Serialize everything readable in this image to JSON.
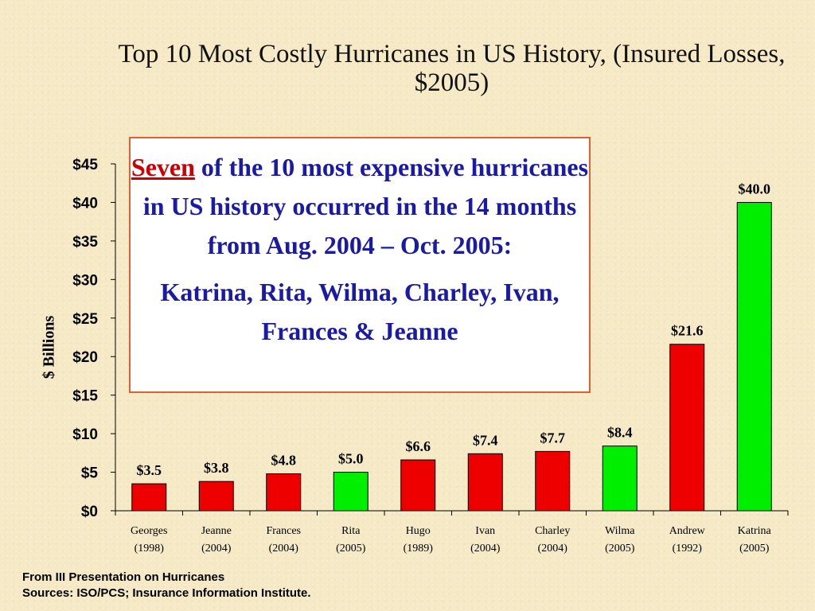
{
  "title": "Top 10 Most Costly Hurricanes in US History, (Insured Losses, $2005)",
  "callout": {
    "emph": "Seven",
    "line1_rest": " of the 10 most expensive hurricanes in US history occurred in the 14 months from Aug. 2004 – Oct. 2005:",
    "line2": "Katrina, Rita, Wilma, Charley, Ivan, Frances & Jeanne"
  },
  "footer": {
    "line1": "From III Presentation on Hurricanes",
    "line2": "Sources: ISO/PCS; Insurance Information Institute."
  },
  "colors": {
    "red": "#ee0000",
    "green": "#00ee00"
  },
  "chart_data": {
    "type": "bar",
    "title": "Top 10 Most Costly Hurricanes in US History, (Insured Losses, $2005)",
    "ylabel": "$ Billions",
    "xlabel": "",
    "ylim": [
      0,
      45
    ],
    "yticks": [
      "$0",
      "$5",
      "$10",
      "$15",
      "$20",
      "$25",
      "$30",
      "$35",
      "$40",
      "$45"
    ],
    "grid": false,
    "categories": [
      "Georges",
      "Jeanne",
      "Frances",
      "Rita",
      "Hugo",
      "Ivan",
      "Charley",
      "Wilma",
      "Andrew",
      "Katrina"
    ],
    "years": [
      "(1998)",
      "(2004)",
      "(2004)",
      "(2005)",
      "(1989)",
      "(2004)",
      "(2004)",
      "(2005)",
      "(1992)",
      "(2005)"
    ],
    "values": [
      3.5,
      3.8,
      4.8,
      5.0,
      6.6,
      7.4,
      7.7,
      8.4,
      21.6,
      40.0
    ],
    "value_labels": [
      "$3.5",
      "$3.8",
      "$4.8",
      "$5.0",
      "$6.6",
      "$7.4",
      "$7.7",
      "$8.4",
      "$21.6",
      "$40.0"
    ],
    "bar_colors": [
      "red",
      "red",
      "red",
      "green",
      "red",
      "red",
      "red",
      "green",
      "red",
      "green"
    ]
  }
}
